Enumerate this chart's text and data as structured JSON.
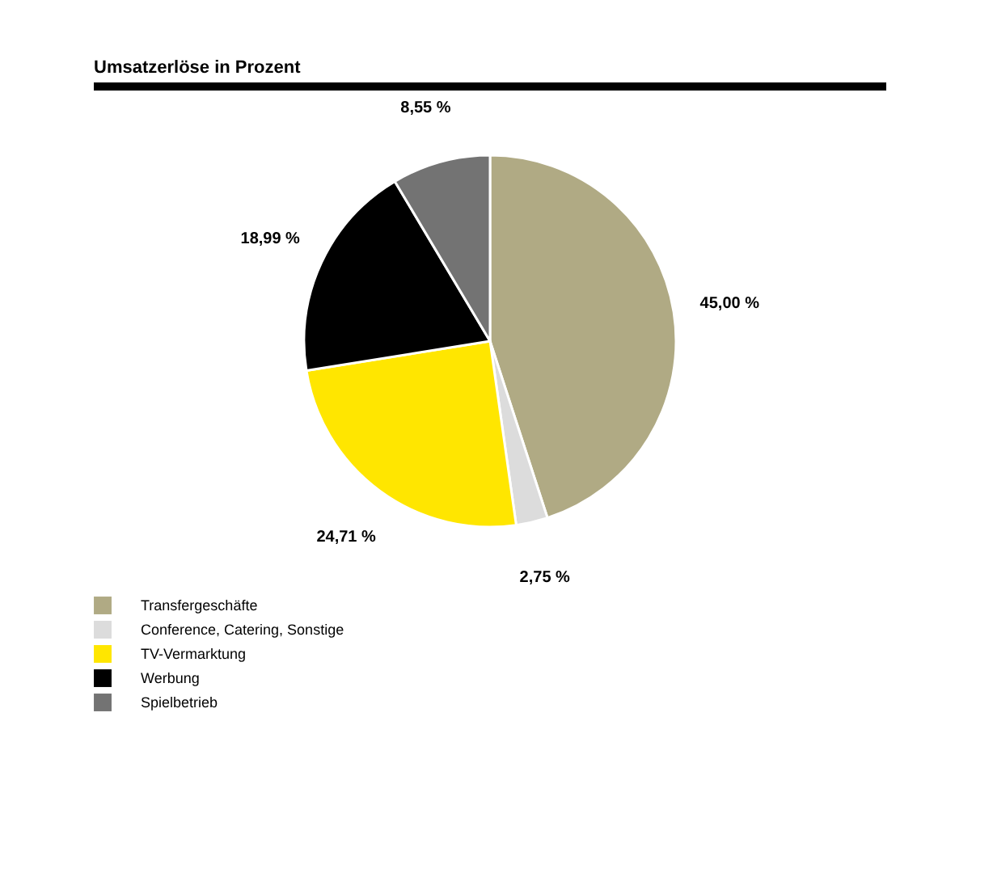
{
  "chart_data": {
    "type": "pie",
    "title": "Umsatzerlöse in Prozent",
    "categories": [
      "Transfergeschäfte",
      "Conference, Catering, Sonstige",
      "TV-Vermarktung",
      "Werbung",
      "Spielbetrieb"
    ],
    "values": [
      45.0,
      2.75,
      24.71,
      18.99,
      8.55
    ],
    "colors": [
      "#b0aa84",
      "#dcdcdc",
      "#ffe600",
      "#000000",
      "#737373"
    ],
    "value_labels": [
      "45,00 %",
      "2,75 %",
      "24,71 %",
      "18,99 %",
      "8,55 %"
    ],
    "legend": "bottom"
  }
}
